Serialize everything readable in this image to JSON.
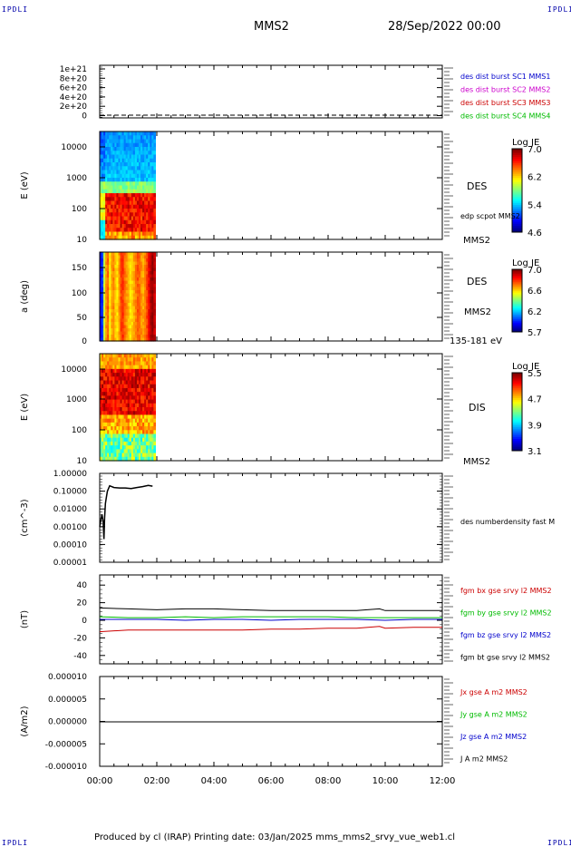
{
  "header": {
    "corner_label": "IPDLI",
    "title": "MMS2",
    "date": "28/Sep/2022 00:00"
  },
  "footer": "Produced by cl (IRAP)   Printing date: 03/Jan/2025   mms_mms2_srvy_vue_web1.cl",
  "colors": {
    "blue": "#0000cc",
    "magenta": "#cc00cc",
    "red": "#cc0000",
    "green": "#00bb00",
    "black": "#000000"
  },
  "chart_data": [
    {
      "type": "line",
      "panel": "dist_burst",
      "ylabel": "",
      "yticks": [
        "1e+21",
        "8e+20",
        "6e+20",
        "4e+20",
        "2e+20",
        "0"
      ],
      "ylim": [
        0,
        1.1e+21
      ],
      "legend": [
        {
          "name": "des dist burst SC1 MMS1",
          "color": "#0000cc"
        },
        {
          "name": "des dist burst SC2 MMS2",
          "color": "#cc00cc"
        },
        {
          "name": "des dist burst SC3 MMS3",
          "color": "#cc0000"
        },
        {
          "name": "des dist burst SC4 MMS4",
          "color": "#00bb00"
        }
      ],
      "series": [
        {
          "values": [
            0,
            0
          ]
        }
      ]
    },
    {
      "type": "heatmap",
      "panel": "des_energy",
      "ylabel": "E (eV)",
      "yticks": [
        "10000",
        "1000",
        "100",
        "10"
      ],
      "right_labels": [
        "DES",
        "edp scpot MMS2",
        "MMS2"
      ],
      "colorbar": {
        "title": "Log JE",
        "ticks": [
          "7.0",
          "6.2",
          "5.4",
          "4.6"
        ]
      },
      "data_end_time": "01:55"
    },
    {
      "type": "heatmap",
      "panel": "des_pitch",
      "ylabel": "a (deg)",
      "yticks": [
        "150",
        "100",
        "50",
        "0"
      ],
      "right_labels": [
        "DES",
        "MMS2",
        "135-181 eV"
      ],
      "colorbar": {
        "title": "Log JE",
        "ticks": [
          "7.0",
          "6.6",
          "6.2",
          "5.7"
        ]
      },
      "data_end_time": "01:55"
    },
    {
      "type": "heatmap",
      "panel": "dis_energy",
      "ylabel": "E (eV)",
      "yticks": [
        "10000",
        "1000",
        "100",
        "10"
      ],
      "right_labels": [
        "DIS",
        "MMS2"
      ],
      "colorbar": {
        "title": "Log JE",
        "ticks": [
          "5.5",
          "4.7",
          "3.9",
          "3.1"
        ]
      },
      "data_end_time": "01:55"
    },
    {
      "type": "line",
      "panel": "density",
      "ylabel": "(cm^-3)",
      "yticks": [
        "1.00000",
        "0.10000",
        "0.01000",
        "0.00100",
        "0.00010",
        "0.00001"
      ],
      "log_y": true,
      "right_labels": [
        "des numberdensity fast M"
      ],
      "series": [
        {
          "name": "des numberdensity fast M",
          "x_hours": [
            0.0,
            0.08,
            0.12,
            0.15,
            0.17,
            0.2,
            0.23,
            0.27,
            0.35,
            0.5,
            0.7,
            0.9,
            1.1,
            1.3,
            1.5,
            1.7,
            1.85
          ],
          "values": [
            0.001,
            0.005,
            0.002,
            0.0002,
            0.003,
            0.02,
            0.04,
            0.1,
            0.2,
            0.16,
            0.15,
            0.15,
            0.14,
            0.16,
            0.18,
            0.21,
            0.19
          ]
        }
      ]
    },
    {
      "type": "line",
      "panel": "fgm",
      "ylabel": "(nT)",
      "yticks": [
        "40",
        "20",
        "0",
        "-20",
        "-40"
      ],
      "ylim": [
        -50,
        50
      ],
      "series": [
        {
          "name": "fgm bx gse srvy l2 MMS2",
          "color": "#cc0000",
          "x_hours": [
            0,
            1,
            2,
            3,
            4,
            5,
            6,
            7,
            8,
            9,
            9.8,
            10,
            11,
            12
          ],
          "values": [
            -13,
            -11,
            -11,
            -11,
            -11,
            -11,
            -10,
            -10,
            -9,
            -9,
            -7,
            -9,
            -8,
            -8
          ]
        },
        {
          "name": "fgm by gse srvy l2 MMS2",
          "color": "#00bb00",
          "x_hours": [
            0,
            1,
            2,
            3,
            4,
            5,
            6,
            7,
            8,
            9,
            10,
            11,
            12
          ],
          "values": [
            4,
            3,
            3,
            4,
            3,
            4,
            4,
            4,
            4,
            3,
            3,
            3,
            3
          ]
        },
        {
          "name": "fgm bz gse srvy l2 MMS2",
          "color": "#0000cc",
          "x_hours": [
            0,
            1,
            2,
            3,
            4,
            5,
            6,
            7,
            8,
            9,
            10,
            11,
            12
          ],
          "values": [
            1,
            1,
            1,
            0,
            1,
            1,
            0,
            1,
            1,
            1,
            0,
            1,
            1
          ]
        },
        {
          "name": "fgm bt gse srvy l2 MMS2",
          "color": "#000000",
          "x_hours": [
            0,
            1,
            2,
            3,
            4,
            5,
            6,
            7,
            8,
            9,
            9.8,
            10,
            11,
            12
          ],
          "values": [
            14,
            13,
            12,
            13,
            13,
            12,
            11,
            11,
            11,
            11,
            13,
            11,
            11,
            11
          ]
        }
      ]
    },
    {
      "type": "line",
      "panel": "current",
      "ylabel": "(A/m2)",
      "yticks": [
        "0.000010",
        "0.000005",
        "0.000000",
        "-0.000005",
        "-0.000010"
      ],
      "ylim": [
        -1e-05,
        1e-05
      ],
      "xticks": [
        "00:00",
        "02:00",
        "04:00",
        "06:00",
        "08:00",
        "10:00",
        "12:00"
      ],
      "series": [
        {
          "name": "Jx gse A m2 MMS2",
          "color": "#cc0000",
          "values": []
        },
        {
          "name": "Jy gse A m2 MMS2",
          "color": "#00bb00",
          "values": []
        },
        {
          "name": "Jz gse A m2 MMS2",
          "color": "#0000cc",
          "values": []
        },
        {
          "name": "J A m2 MMS2",
          "color": "#000000",
          "values": [
            0,
            0
          ]
        }
      ]
    }
  ]
}
